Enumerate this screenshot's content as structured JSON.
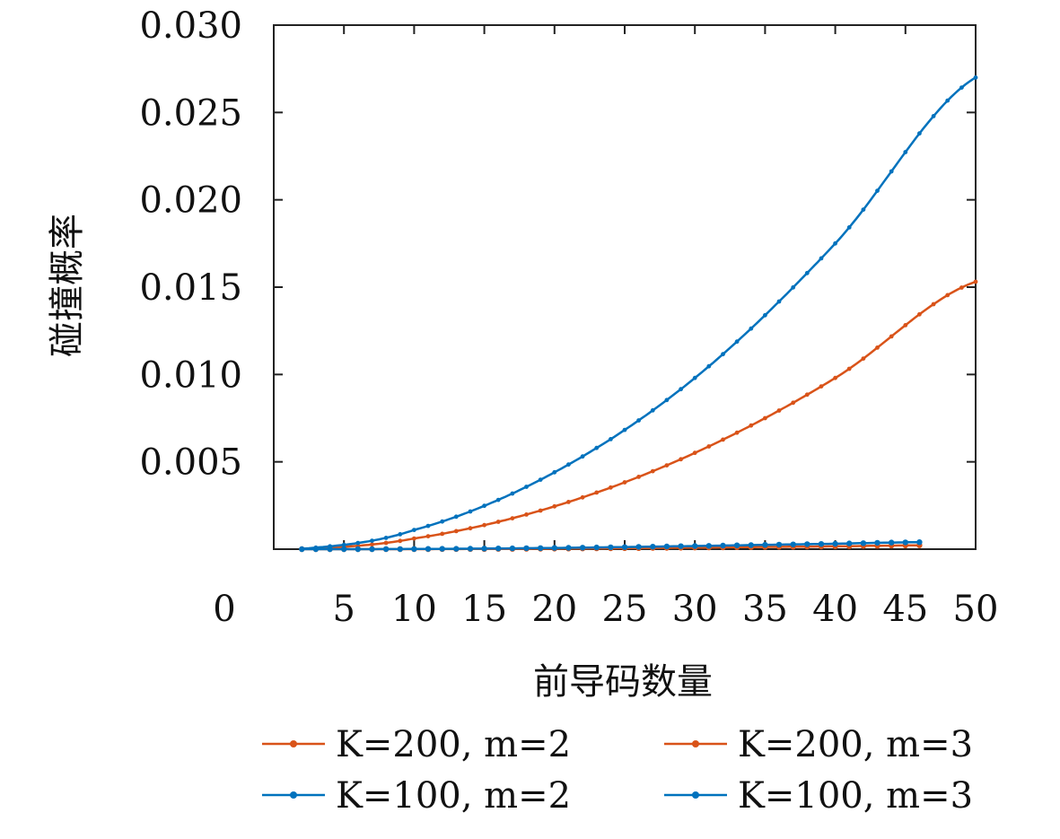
{
  "chart_data": {
    "type": "line",
    "xlabel": "前导码数量",
    "ylabel": "碰撞概率",
    "xlim": [
      0,
      50
    ],
    "ylim": [
      0,
      0.03
    ],
    "xticks": [
      0,
      5,
      10,
      15,
      20,
      25,
      30,
      35,
      40,
      45,
      50
    ],
    "xtick_labels": [
      "0",
      "5",
      "10",
      "15",
      "20",
      "25",
      "30",
      "35",
      "40",
      "45",
      "50"
    ],
    "yticks": [
      0.005,
      0.01,
      0.015,
      0.02,
      0.025,
      0.03
    ],
    "ytick_labels": [
      "0.005",
      "0.010",
      "0.015",
      "0.020",
      "0.025",
      "0.030"
    ],
    "grid": false,
    "legend_position": "bottom",
    "series": [
      {
        "name": "K=200, m=2",
        "color": "#d95319",
        "x": [
          2,
          10,
          20,
          30,
          40,
          50
        ],
        "y": [
          1e-05,
          0.00061,
          0.00245,
          0.00551,
          0.0098,
          0.01531
        ]
      },
      {
        "name": "K=200, m=3",
        "color": "#d95319",
        "x": [
          2,
          10,
          20,
          30,
          40,
          46
        ],
        "y": [
          0.0,
          0.0,
          3e-05,
          9e-05,
          0.00016,
          0.00022
        ]
      },
      {
        "name": "K=100, m=2",
        "color": "#0072bd",
        "x": [
          2,
          10,
          20,
          30,
          40,
          50
        ],
        "y": [
          2e-05,
          0.0011,
          0.0044,
          0.0098,
          0.0175,
          0.027
        ]
      },
      {
        "name": "K=100, m=3",
        "color": "#0072bd",
        "x": [
          2,
          10,
          20,
          30,
          40,
          46
        ],
        "y": [
          0.0,
          1e-05,
          7e-05,
          0.00018,
          0.00031,
          0.0004
        ]
      }
    ]
  }
}
